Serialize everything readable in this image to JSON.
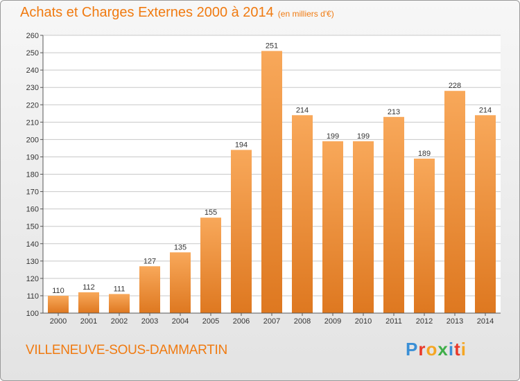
{
  "header": {
    "title": "Achats et Charges Externes 2000 à 2014",
    "unit": "(en milliers d'€)"
  },
  "footer": {
    "city": "VILLENEUVE-SOUS-DAMMARTIN",
    "brand": "Proxiti",
    "brand_colors": [
      "#3a8fd6",
      "#e8392a",
      "#f5a623",
      "#3fae49",
      "#3a8fd6",
      "#e8392a",
      "#f5a623"
    ]
  },
  "colors": {
    "accent": "#f07a10",
    "bar_light": "#f8a85a",
    "bar_dark": "#de7820",
    "grid": "#c8c8c8",
    "plot_bg": "#ffffff"
  },
  "chart_data": {
    "type": "bar",
    "title": "Achats et Charges Externes 2000 à 2014",
    "subtitle": "(en milliers d'€)",
    "categories": [
      "2000",
      "2001",
      "2002",
      "2003",
      "2004",
      "2005",
      "2006",
      "2007",
      "2008",
      "2009",
      "2010",
      "2011",
      "2012",
      "2013",
      "2014"
    ],
    "values": [
      110,
      112,
      111,
      127,
      135,
      155,
      194,
      251,
      214,
      199,
      199,
      213,
      189,
      228,
      214
    ],
    "ylim": [
      100,
      260
    ],
    "yticks": [
      100,
      110,
      120,
      130,
      140,
      150,
      160,
      170,
      180,
      190,
      200,
      210,
      220,
      230,
      240,
      250,
      260
    ],
    "xlabel": "",
    "ylabel": "",
    "grid": true,
    "legend": "none"
  }
}
